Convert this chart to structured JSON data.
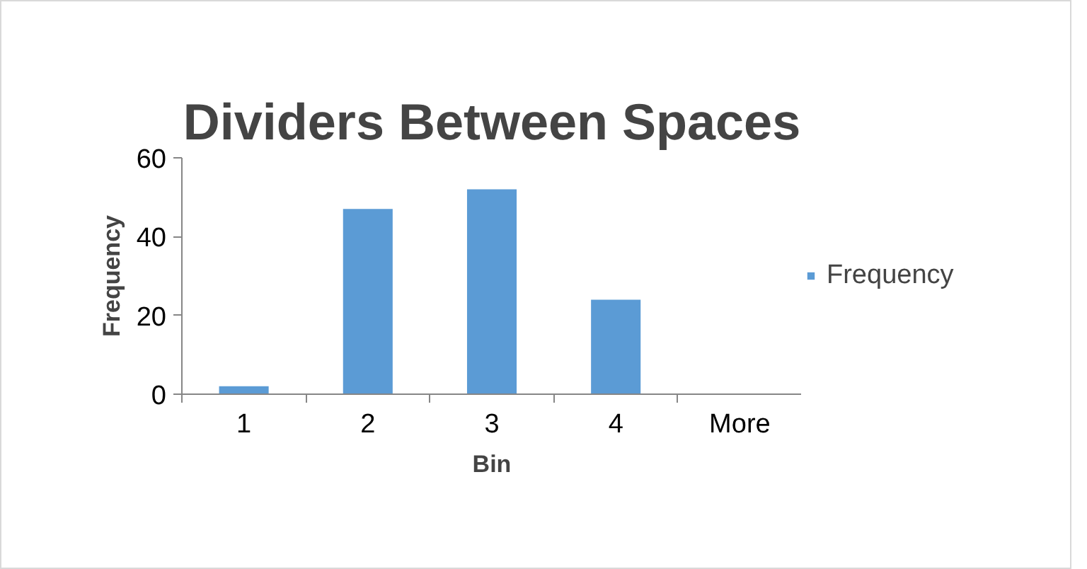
{
  "chart_data": {
    "type": "bar",
    "title": "Dividers Between Spaces",
    "xlabel": "Bin",
    "ylabel": "Frequency",
    "categories": [
      "1",
      "2",
      "3",
      "4",
      "More"
    ],
    "series": [
      {
        "name": "Frequency",
        "color": "#5b9bd5",
        "values": [
          2,
          47,
          52,
          24,
          0
        ]
      }
    ],
    "ylim": [
      0,
      60
    ],
    "yticks": [
      0,
      20,
      40,
      60
    ],
    "grid": false,
    "legend": "right"
  }
}
